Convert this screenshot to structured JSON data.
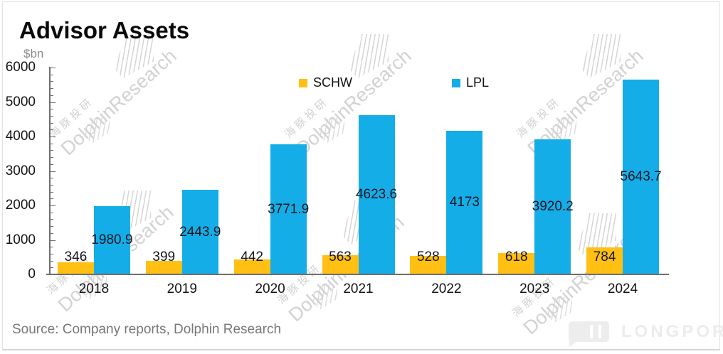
{
  "header": {
    "title": "Advisor Assets",
    "unit": "$bn"
  },
  "chart_data": {
    "type": "bar",
    "title": "Advisor Assets",
    "unit": "$bn",
    "categories": [
      "2018",
      "2019",
      "2020",
      "2021",
      "2022",
      "2023",
      "2024"
    ],
    "series": [
      {
        "name": "SCHW",
        "color": "#FFC013",
        "values": [
          346,
          399,
          442,
          563,
          528,
          618,
          784
        ]
      },
      {
        "name": "LPL",
        "color": "#14ADE8",
        "values": [
          1980.9,
          2443.9,
          3771.9,
          4623.6,
          4173,
          3920.2,
          5643.7
        ]
      }
    ],
    "ylim": [
      0,
      6000
    ],
    "yticks": [
      0,
      1000,
      2000,
      3000,
      4000,
      5000,
      6000
    ],
    "minor_tick_step": 200,
    "grid": false,
    "legend_position": "top-center",
    "data_labels": true
  },
  "watermark": {
    "en": "DolphinResearch",
    "cn": "海豚投研"
  },
  "footer": {
    "source": "Source: Company reports, Dolphin Research",
    "brand": "LONGPORT"
  }
}
